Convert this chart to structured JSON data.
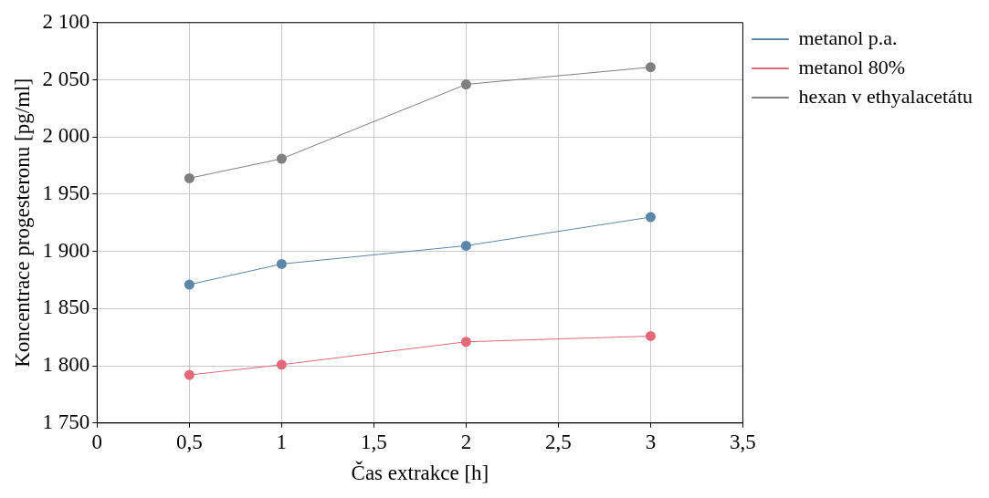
{
  "chart_data": {
    "type": "line",
    "xlabel": "Čas extrakce [h]",
    "ylabel": "Koncentrace progesteronu [pg/ml]",
    "x": [
      0.5,
      1,
      2,
      3
    ],
    "series": [
      {
        "name": "metanol p.a.",
        "color": "#5b87a8",
        "values": [
          1871,
          1889,
          1905,
          1930
        ]
      },
      {
        "name": "metanol 80%",
        "color": "#e2697a",
        "values": [
          1792,
          1801,
          1821,
          1826
        ]
      },
      {
        "name": "hexan v ethyalacetátu",
        "color": "#7f7f7f",
        "values": [
          1964,
          1981,
          2046,
          2061
        ]
      }
    ],
    "xlim": [
      0,
      3.5
    ],
    "xticks": [
      0,
      {
        "value": 0.5,
        "label": "0,5"
      },
      1,
      {
        "value": 1.5,
        "label": "1,5"
      },
      2,
      {
        "value": 2.5,
        "label": "2,5"
      },
      3,
      {
        "value": 3.5,
        "label": "3,5"
      }
    ],
    "ylim": [
      1750,
      2100
    ],
    "yticks": [
      {
        "value": 1750,
        "label": "1 750"
      },
      {
        "value": 1800,
        "label": "1 800"
      },
      {
        "value": 1850,
        "label": "1 850"
      },
      {
        "value": 1900,
        "label": "1 900"
      },
      {
        "value": 1950,
        "label": "1 950"
      },
      {
        "value": 2000,
        "label": "2 000"
      },
      {
        "value": 2050,
        "label": "2 050"
      },
      {
        "value": 2100,
        "label": "2 100"
      }
    ],
    "grid": true,
    "legend": "right",
    "marker": "circle",
    "line_style": "solid"
  }
}
